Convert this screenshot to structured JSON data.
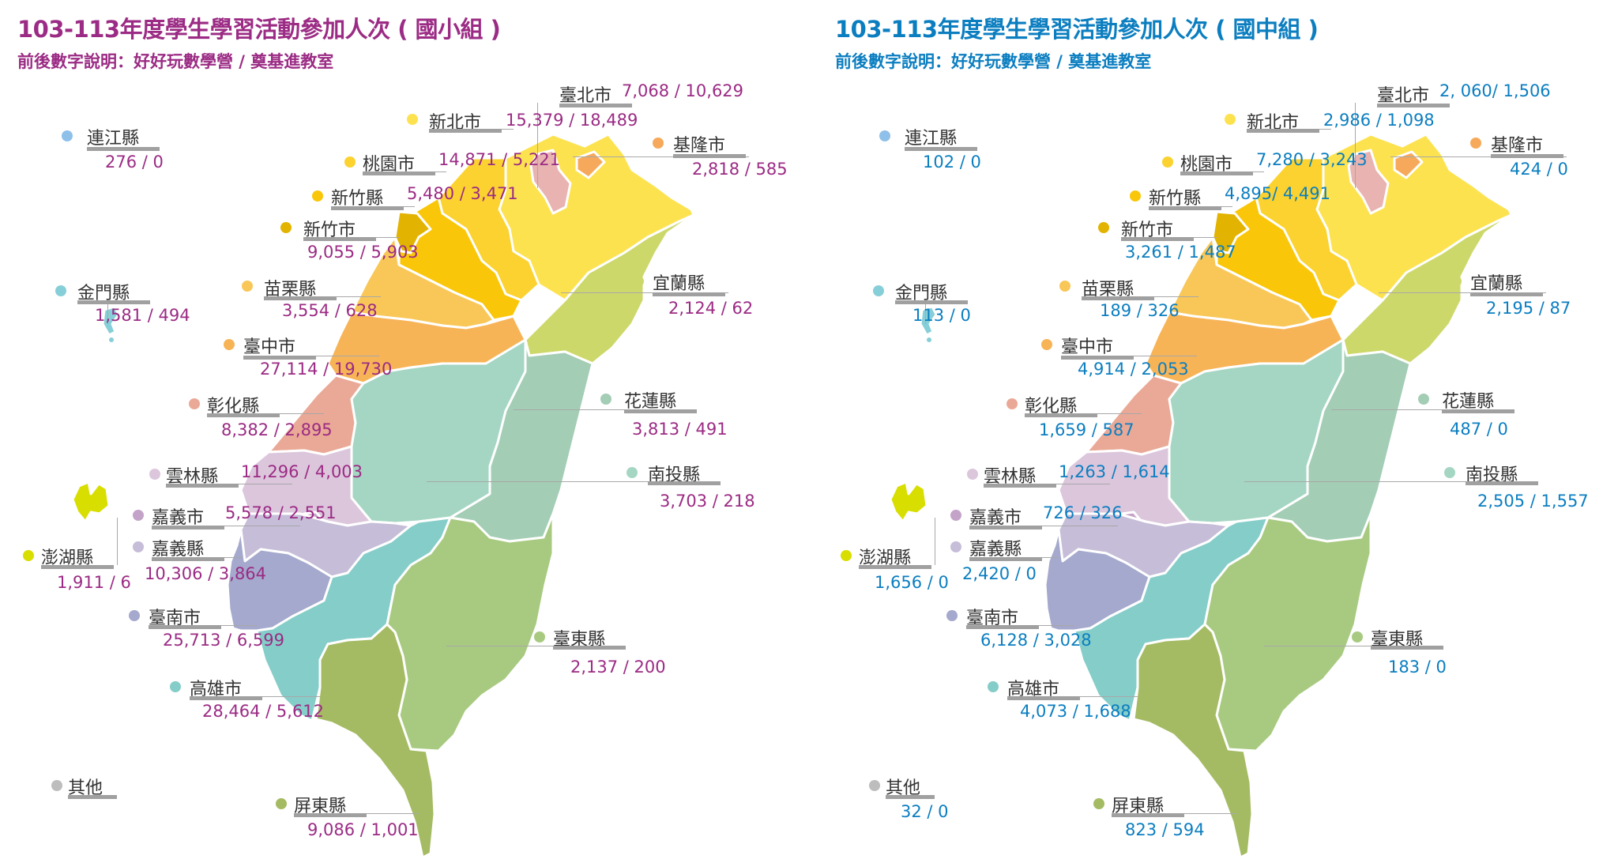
{
  "panels": [
    {
      "title": "103-113年度學生學習活動參加人次 ( 國小組 )",
      "subtitle": "前後數字說明：好好玩數學營 / 奠基進教室",
      "accent": "#9b2b84",
      "counties": {
        "taipei": {
          "name": "臺北市",
          "value": "7,068 / 10,629"
        },
        "newtaipei": {
          "name": "新北市",
          "value": "15,379 / 18,489"
        },
        "keelung": {
          "name": "基隆市",
          "value": "2,818 / 585"
        },
        "taoyuan": {
          "name": "桃園市",
          "value": "14,871 / 5,221"
        },
        "hsinchuc": {
          "name": "新竹縣",
          "value": "5,480 / 3,471"
        },
        "hsinchu": {
          "name": "新竹市",
          "value": "9,055 / 5,903"
        },
        "lienchiang": {
          "name": "連江縣",
          "value": "276 / 0"
        },
        "kinmen": {
          "name": "金門縣",
          "value": "1,581 / 494"
        },
        "miaoli": {
          "name": "苗栗縣",
          "value": "3,554 / 628"
        },
        "yilan": {
          "name": "宜蘭縣",
          "value": "2,124 / 62"
        },
        "taichung": {
          "name": "臺中市",
          "value": "27,114 / 19,730"
        },
        "changhua": {
          "name": "彰化縣",
          "value": "8,382 / 2,895"
        },
        "hualien": {
          "name": "花蓮縣",
          "value": "3,813 / 491"
        },
        "yunlin": {
          "name": "雲林縣",
          "value": "11,296 / 4,003"
        },
        "nantou": {
          "name": "南投縣",
          "value": "3,703 / 218"
        },
        "chiayi": {
          "name": "嘉義市",
          "value": "5,578 / 2,551"
        },
        "penghu": {
          "name": "澎湖縣",
          "value": "1,911 / 6"
        },
        "chiayic": {
          "name": "嘉義縣",
          "value": "10,306 / 3,864"
        },
        "tainan": {
          "name": "臺南市",
          "value": "25,713 / 6,599"
        },
        "taitung": {
          "name": "臺東縣",
          "value": "2,137 / 200"
        },
        "kaohsiung": {
          "name": "高雄市",
          "value": "28,464 / 5,612"
        },
        "other": {
          "name": "其他",
          "value": ""
        },
        "pingtung": {
          "name": "屏東縣",
          "value": "9,086 / 1,001"
        }
      }
    },
    {
      "title": "103-113年度學生學習活動參加人次 ( 國中組 )",
      "subtitle": "前後數字說明：好好玩數學營 / 奠基進教室",
      "accent": "#0b7ec0",
      "counties": {
        "taipei": {
          "name": "臺北市",
          "value": "2, 060/ 1,506"
        },
        "newtaipei": {
          "name": "新北市",
          "value": "2,986 / 1,098"
        },
        "keelung": {
          "name": "基隆市",
          "value": "424 / 0"
        },
        "taoyuan": {
          "name": "桃園市",
          "value": "7,280 / 3,243"
        },
        "hsinchuc": {
          "name": "新竹縣",
          "value": "4,895/ 4,491"
        },
        "hsinchu": {
          "name": "新竹市",
          "value": "3,261 / 1,487"
        },
        "lienchiang": {
          "name": "連江縣",
          "value": "102 / 0"
        },
        "kinmen": {
          "name": "金門縣",
          "value": "113 / 0"
        },
        "miaoli": {
          "name": "苗栗縣",
          "value": "189 / 326"
        },
        "yilan": {
          "name": "宜蘭縣",
          "value": "2,195 / 87"
        },
        "taichung": {
          "name": "臺中市",
          "value": "4,914 / 2,053"
        },
        "changhua": {
          "name": "彰化縣",
          "value": "1,659 / 587"
        },
        "hualien": {
          "name": "花蓮縣",
          "value": "487 / 0"
        },
        "yunlin": {
          "name": "雲林縣",
          "value": "1,263 / 1,614"
        },
        "nantou": {
          "name": "南投縣",
          "value": "2,505 / 1,557"
        },
        "chiayi": {
          "name": "嘉義市",
          "value": "726 / 326"
        },
        "penghu": {
          "name": "澎湖縣",
          "value": "1,656 / 0"
        },
        "chiayic": {
          "name": "嘉義縣",
          "value": "2,420 / 0"
        },
        "tainan": {
          "name": "臺南市",
          "value": "6,128 / 3,028"
        },
        "taitung": {
          "name": "臺東縣",
          "value": "183 / 0"
        },
        "kaohsiung": {
          "name": "高雄市",
          "value": "4,073 / 1,688"
        },
        "other": {
          "name": "其他",
          "value": "32 / 0"
        },
        "pingtung": {
          "name": "屏東縣",
          "value": "823 / 594"
        }
      }
    }
  ],
  "colors": {
    "taipei": "#e8b3b0",
    "newtaipei": "#fde250",
    "keelung": "#f6a95a",
    "taoyuan": "#fbd22f",
    "hsinchuc": "#f9c60a",
    "hsinchu": "#e2b300",
    "lienchiang": "#8fc0ea",
    "kinmen": "#86cfd8",
    "miaoli": "#f9c758",
    "yilan": "#cdd86b",
    "taichung": "#f7b457",
    "changhua": "#eaa996",
    "hualien": "#a3cdb4",
    "yunlin": "#dcc6dc",
    "nantou": "#a4d6c3",
    "chiayi": "#c4a3c8",
    "penghu": "#d8de00",
    "chiayic": "#c6bdd8",
    "tainan": "#a4a9cd",
    "taitung": "#a8ca80",
    "kaohsiung": "#85cdc9",
    "other": "#bdbdbd",
    "pingtung": "#a4bb63"
  }
}
